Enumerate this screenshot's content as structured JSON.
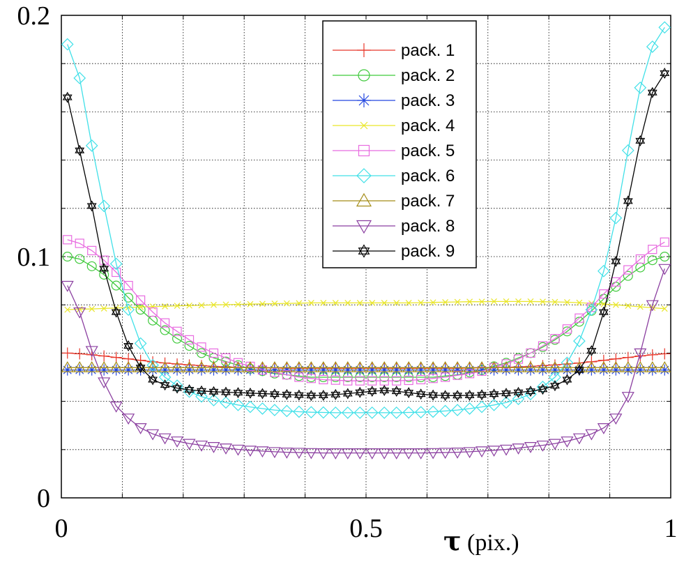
{
  "chart_data": {
    "type": "line",
    "title": "",
    "xlabel_symbol": "τ",
    "xlabel_unit": "(pix.)",
    "ylabel": "",
    "xlim": [
      0,
      1
    ],
    "ylim": [
      0,
      0.2
    ],
    "x_ticks": [
      {
        "value": 0,
        "label": "0"
      },
      {
        "value": 0.5,
        "label": "0.5"
      },
      {
        "value": 1,
        "label": "1"
      }
    ],
    "y_ticks": [
      {
        "value": 0,
        "label": "0"
      },
      {
        "value": 0.1,
        "label": "0.1"
      },
      {
        "value": 0.2,
        "label": "0.2"
      }
    ],
    "grid": true,
    "legend_position": "top-right",
    "x": [
      0.01,
      0.03,
      0.05,
      0.07,
      0.09,
      0.11,
      0.13,
      0.15,
      0.17,
      0.19,
      0.21,
      0.23,
      0.25,
      0.27,
      0.29,
      0.31,
      0.33,
      0.35,
      0.37,
      0.39,
      0.41,
      0.43,
      0.45,
      0.47,
      0.49,
      0.51,
      0.53,
      0.55,
      0.57,
      0.59,
      0.61,
      0.63,
      0.65,
      0.67,
      0.69,
      0.71,
      0.73,
      0.75,
      0.77,
      0.79,
      0.81,
      0.83,
      0.85,
      0.87,
      0.89,
      0.91,
      0.93,
      0.95,
      0.97,
      0.99
    ],
    "series": [
      {
        "name": "pack. 1",
        "color": "#e8372a",
        "marker": "plus",
        "values": [
          0.06,
          0.0597,
          0.0593,
          0.0588,
          0.0582,
          0.0576,
          0.057,
          0.0564,
          0.0559,
          0.0555,
          0.0551,
          0.0548,
          0.0545,
          0.0543,
          0.0541,
          0.054,
          0.0539,
          0.0538,
          0.0537,
          0.0537,
          0.0537,
          0.0537,
          0.0537,
          0.0537,
          0.0537,
          0.0537,
          0.0537,
          0.0537,
          0.0537,
          0.0537,
          0.0537,
          0.0537,
          0.0537,
          0.0538,
          0.0539,
          0.054,
          0.0541,
          0.0543,
          0.0545,
          0.0548,
          0.0551,
          0.0555,
          0.0559,
          0.0564,
          0.057,
          0.0576,
          0.0582,
          0.0588,
          0.0593,
          0.0597
        ]
      },
      {
        "name": "pack. 2",
        "color": "#3fc93b",
        "marker": "circle",
        "values": [
          0.1,
          0.099,
          0.096,
          0.0925,
          0.088,
          0.083,
          0.078,
          0.0735,
          0.0695,
          0.066,
          0.063,
          0.06,
          0.058,
          0.0565,
          0.055,
          0.0535,
          0.0525,
          0.0515,
          0.051,
          0.0505,
          0.05,
          0.05,
          0.05,
          0.05,
          0.05,
          0.05,
          0.05,
          0.05,
          0.05,
          0.05,
          0.05,
          0.0505,
          0.051,
          0.052,
          0.053,
          0.0545,
          0.056,
          0.058,
          0.06,
          0.0625,
          0.0655,
          0.069,
          0.073,
          0.0775,
          0.0825,
          0.0875,
          0.092,
          0.0955,
          0.0985,
          0.1
        ]
      },
      {
        "name": "pack. 3",
        "color": "#2346e0",
        "marker": "asterisk",
        "values": [
          0.053,
          0.053,
          0.053,
          0.053,
          0.053,
          0.053,
          0.053,
          0.053,
          0.053,
          0.053,
          0.053,
          0.053,
          0.053,
          0.053,
          0.053,
          0.053,
          0.053,
          0.053,
          0.053,
          0.053,
          0.053,
          0.053,
          0.053,
          0.053,
          0.053,
          0.053,
          0.053,
          0.053,
          0.053,
          0.053,
          0.053,
          0.053,
          0.053,
          0.053,
          0.053,
          0.053,
          0.053,
          0.053,
          0.053,
          0.053,
          0.053,
          0.053,
          0.053,
          0.053,
          0.053,
          0.053,
          0.053,
          0.053,
          0.053,
          0.053
        ]
      },
      {
        "name": "pack. 4",
        "color": "#e9e629",
        "marker": "x",
        "values": [
          0.078,
          0.0782,
          0.0783,
          0.0785,
          0.0787,
          0.0789,
          0.0791,
          0.0793,
          0.0794,
          0.0796,
          0.0797,
          0.0798,
          0.08,
          0.0801,
          0.0802,
          0.0803,
          0.0804,
          0.0805,
          0.0806,
          0.0807,
          0.0808,
          0.0808,
          0.0808,
          0.0808,
          0.0808,
          0.0808,
          0.0808,
          0.0808,
          0.0808,
          0.0809,
          0.081,
          0.0811,
          0.0812,
          0.0813,
          0.0813,
          0.0814,
          0.0814,
          0.0814,
          0.0814,
          0.0813,
          0.0812,
          0.0811,
          0.0809,
          0.0806,
          0.0803,
          0.08,
          0.0796,
          0.0792,
          0.0788,
          0.0784
        ]
      },
      {
        "name": "pack. 5",
        "color": "#e86be0",
        "marker": "square",
        "values": [
          0.107,
          0.1055,
          0.1025,
          0.0985,
          0.0935,
          0.088,
          0.082,
          0.077,
          0.0725,
          0.069,
          0.0655,
          0.0625,
          0.06,
          0.058,
          0.056,
          0.0545,
          0.053,
          0.052,
          0.051,
          0.05,
          0.0495,
          0.049,
          0.0488,
          0.0485,
          0.0485,
          0.0485,
          0.0485,
          0.0485,
          0.0487,
          0.049,
          0.0495,
          0.05,
          0.0508,
          0.0515,
          0.0525,
          0.054,
          0.0555,
          0.0575,
          0.06,
          0.063,
          0.066,
          0.07,
          0.0745,
          0.079,
          0.0845,
          0.0895,
          0.0945,
          0.099,
          0.103,
          0.106
        ]
      },
      {
        "name": "pack. 6",
        "color": "#40e0e8",
        "marker": "diamond",
        "values": [
          0.188,
          0.174,
          0.146,
          0.121,
          0.097,
          0.078,
          0.064,
          0.055,
          0.05,
          0.0465,
          0.044,
          0.042,
          0.0405,
          0.0395,
          0.0385,
          0.0377,
          0.037,
          0.0364,
          0.036,
          0.0357,
          0.0355,
          0.0354,
          0.0353,
          0.0353,
          0.0353,
          0.0353,
          0.0353,
          0.0353,
          0.0354,
          0.0355,
          0.0357,
          0.036,
          0.0364,
          0.037,
          0.0377,
          0.0385,
          0.0395,
          0.041,
          0.043,
          0.046,
          0.05,
          0.056,
          0.065,
          0.078,
          0.094,
          0.116,
          0.144,
          0.17,
          0.187,
          0.195
        ]
      },
      {
        "name": "pack. 7",
        "color": "#a48c16",
        "marker": "triangle-up",
        "values": [
          0.054,
          0.054,
          0.054,
          0.054,
          0.054,
          0.054,
          0.054,
          0.054,
          0.054,
          0.054,
          0.054,
          0.054,
          0.054,
          0.054,
          0.054,
          0.054,
          0.054,
          0.054,
          0.054,
          0.054,
          0.054,
          0.054,
          0.054,
          0.054,
          0.054,
          0.054,
          0.054,
          0.054,
          0.054,
          0.054,
          0.054,
          0.054,
          0.054,
          0.054,
          0.054,
          0.054,
          0.054,
          0.054,
          0.054,
          0.054,
          0.054,
          0.054,
          0.054,
          0.054,
          0.054,
          0.054,
          0.054,
          0.054,
          0.054,
          0.054
        ]
      },
      {
        "name": "pack. 8",
        "color": "#8b3fa0",
        "marker": "triangle-down",
        "values": [
          0.088,
          0.077,
          0.061,
          0.048,
          0.038,
          0.033,
          0.029,
          0.0265,
          0.0248,
          0.0235,
          0.0225,
          0.0218,
          0.0212,
          0.0206,
          0.0201,
          0.0197,
          0.0194,
          0.0191,
          0.0189,
          0.0188,
          0.0187,
          0.0186,
          0.0186,
          0.0186,
          0.0186,
          0.0186,
          0.0186,
          0.0186,
          0.0186,
          0.0186,
          0.0187,
          0.0188,
          0.0189,
          0.0191,
          0.0194,
          0.0197,
          0.0201,
          0.0206,
          0.0212,
          0.0218,
          0.0225,
          0.0235,
          0.0248,
          0.0265,
          0.029,
          0.033,
          0.042,
          0.06,
          0.08,
          0.095
        ]
      },
      {
        "name": "pack. 9",
        "color": "#000000",
        "marker": "star",
        "values": [
          0.166,
          0.144,
          0.121,
          0.095,
          0.077,
          0.063,
          0.054,
          0.049,
          0.0468,
          0.0455,
          0.0448,
          0.0443,
          0.044,
          0.0438,
          0.0436,
          0.0434,
          0.0432,
          0.043,
          0.0428,
          0.0426,
          0.0424,
          0.0425,
          0.0428,
          0.0432,
          0.0437,
          0.0442,
          0.0445,
          0.0442,
          0.0436,
          0.043,
          0.0426,
          0.0424,
          0.0424,
          0.0425,
          0.0427,
          0.043,
          0.0433,
          0.0437,
          0.0442,
          0.045,
          0.0465,
          0.049,
          0.053,
          0.061,
          0.077,
          0.098,
          0.123,
          0.148,
          0.168,
          0.176
        ]
      }
    ]
  }
}
